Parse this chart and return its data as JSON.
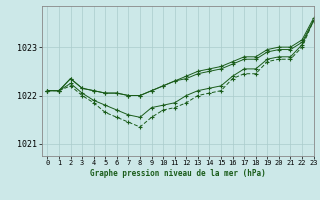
{
  "title": "Graphe pression niveau de la mer (hPa)",
  "bg_color": "#cce8e8",
  "grid_color": "#aacccc",
  "line_color": "#1a5c1a",
  "xlim": [
    -0.5,
    23
  ],
  "ylim": [
    1020.75,
    1023.85
  ],
  "yticks": [
    1021,
    1022,
    1023
  ],
  "xtick_labels": [
    "0",
    "1",
    "2",
    "3",
    "4",
    "5",
    "6",
    "7",
    "8",
    "9",
    "10",
    "11",
    "12",
    "13",
    "14",
    "15",
    "16",
    "17",
    "18",
    "19",
    "20",
    "21",
    "22",
    "23"
  ],
  "series_upper_x": [
    0,
    1,
    2,
    3,
    4,
    5,
    6,
    7,
    8,
    9,
    10,
    11,
    12,
    13,
    14,
    15,
    16,
    17,
    18,
    19,
    20,
    21,
    22,
    23
  ],
  "series_upper_y": [
    1022.1,
    1022.1,
    1022.35,
    1022.15,
    1022.1,
    1022.05,
    1022.05,
    1022.0,
    1022.0,
    1022.1,
    1022.2,
    1022.3,
    1022.35,
    1022.45,
    1022.5,
    1022.55,
    1022.65,
    1022.75,
    1022.75,
    1022.9,
    1022.95,
    1022.95,
    1023.1,
    1023.55
  ],
  "series_mid_x": [
    0,
    1,
    2,
    3,
    4,
    5,
    6,
    7,
    8,
    9,
    10,
    11,
    12,
    13,
    14,
    15,
    16,
    17,
    18,
    19,
    20,
    21,
    22,
    23
  ],
  "series_mid_y": [
    1022.1,
    1022.1,
    1022.25,
    1022.05,
    1021.9,
    1021.8,
    1021.7,
    1021.6,
    1021.55,
    1021.75,
    1021.8,
    1021.85,
    1022.0,
    1022.1,
    1022.15,
    1022.2,
    1022.4,
    1022.55,
    1022.55,
    1022.75,
    1022.8,
    1022.8,
    1023.05,
    1023.55
  ],
  "series_lower_x": [
    0,
    1,
    2,
    3,
    4,
    5,
    6,
    7,
    8,
    9,
    10,
    11,
    12,
    13,
    14,
    15,
    16,
    17,
    18,
    19,
    20,
    21,
    22,
    23
  ],
  "series_lower_y": [
    1022.1,
    1022.1,
    1022.2,
    1022.0,
    1021.85,
    1021.65,
    1021.55,
    1021.45,
    1021.35,
    1021.55,
    1021.7,
    1021.75,
    1021.85,
    1022.0,
    1022.05,
    1022.1,
    1022.35,
    1022.45,
    1022.45,
    1022.7,
    1022.75,
    1022.75,
    1023.0,
    1023.55
  ],
  "series_top_x": [
    0,
    1,
    2,
    3,
    4,
    5,
    6,
    7,
    8,
    9,
    10,
    11,
    12,
    13,
    14,
    15,
    16,
    17,
    18,
    19,
    20,
    21,
    22,
    23
  ],
  "series_top_y": [
    1022.1,
    1022.1,
    1022.35,
    1022.15,
    1022.1,
    1022.05,
    1022.05,
    1022.0,
    1022.0,
    1022.1,
    1022.2,
    1022.3,
    1022.4,
    1022.5,
    1022.55,
    1022.6,
    1022.7,
    1022.8,
    1022.8,
    1022.95,
    1023.0,
    1023.0,
    1023.15,
    1023.6
  ]
}
